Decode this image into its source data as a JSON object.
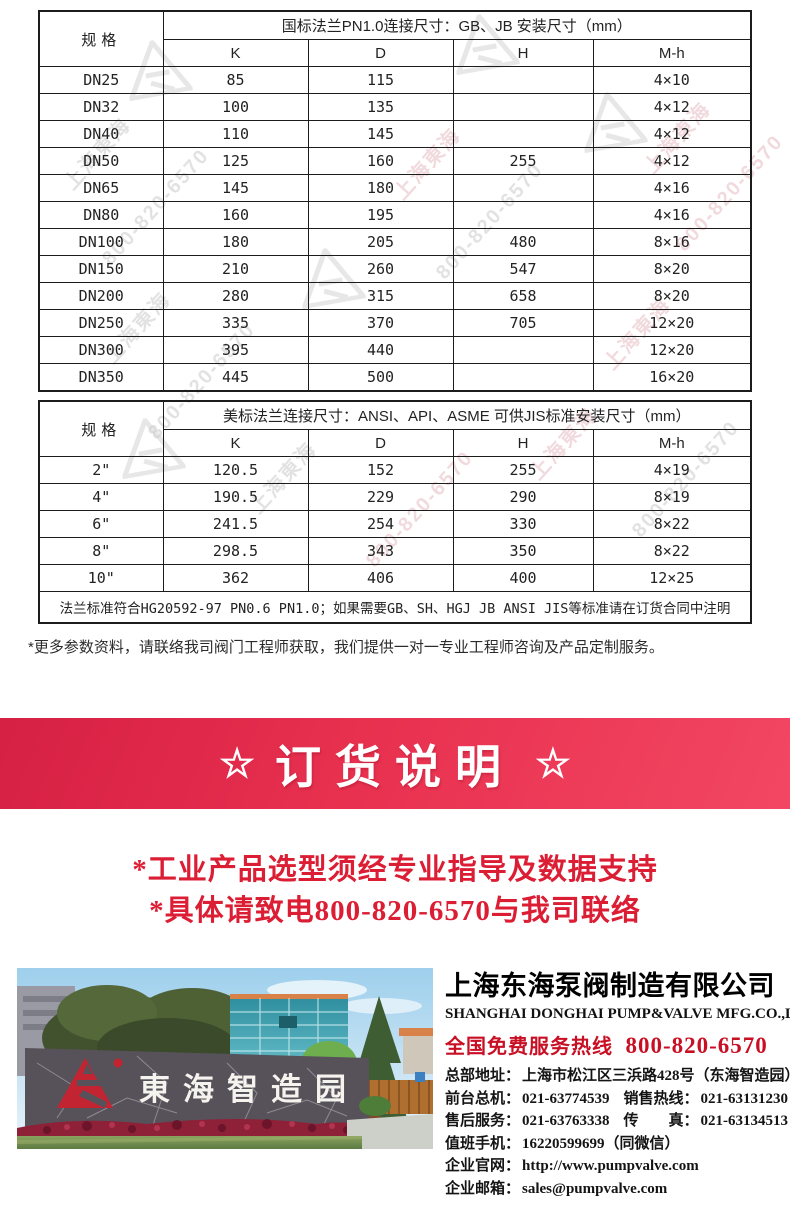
{
  "colors": {
    "accent_red": "#dc1e35",
    "banner_red_dark": "#d62044",
    "banner_red_light": "#f24763",
    "hotline_red": "#c90f24",
    "table_border": "#1c1c1c"
  },
  "watermark": {
    "company_text": "上海東海",
    "phone_text": "800-820-6570",
    "logo_icon": "donghai-triangle-logo"
  },
  "tables": [
    {
      "spec_header": "规格",
      "title": "国标法兰PN1.0连接尺寸：GB、JB 安装尺寸（mm）",
      "columns": [
        "K",
        "D",
        "H",
        "M-h"
      ],
      "rows": [
        [
          "DN25",
          "85",
          "115",
          "",
          "4×10"
        ],
        [
          "DN32",
          "100",
          "135",
          "",
          "4×12"
        ],
        [
          "DN40",
          "110",
          "145",
          "",
          "4×12"
        ],
        [
          "DN50",
          "125",
          "160",
          "255",
          "4×12"
        ],
        [
          "DN65",
          "145",
          "180",
          "",
          "4×16"
        ],
        [
          "DN80",
          "160",
          "195",
          "",
          "4×16"
        ],
        [
          "DN100",
          "180",
          "205",
          "480",
          "8×16"
        ],
        [
          "DN150",
          "210",
          "260",
          "547",
          "8×20"
        ],
        [
          "DN200",
          "280",
          "315",
          "658",
          "8×20"
        ],
        [
          "DN250",
          "335",
          "370",
          "705",
          "12×20"
        ],
        [
          "DN300",
          "395",
          "440",
          "",
          "12×20"
        ],
        [
          "DN350",
          "445",
          "500",
          "",
          "16×20"
        ]
      ],
      "footer": ""
    },
    {
      "spec_header": "规格",
      "title": "美标法兰连接尺寸：ANSI、API、ASME 可供JIS标准安装尺寸（mm）",
      "columns": [
        "K",
        "D",
        "H",
        "M-h"
      ],
      "rows": [
        [
          "2\"",
          "120.5",
          "152",
          "255",
          "4×19"
        ],
        [
          "4\"",
          "190.5",
          "229",
          "290",
          "8×19"
        ],
        [
          "6\"",
          "241.5",
          "254",
          "330",
          "8×22"
        ],
        [
          "8\"",
          "298.5",
          "343",
          "350",
          "8×22"
        ],
        [
          "10\"",
          "362",
          "406",
          "400",
          "12×25"
        ]
      ],
      "footer": "法兰标准符合HG20592-97 PN0.6 PN1.0；如果需要GB、SH、HGJ JB ANSI JIS等标准请在订货合同中注明"
    }
  ],
  "param_note": "*更多参数资料，请联络我司阀门工程师获取，我们提供一对一专业工程师咨询及产品定制服务。",
  "banner": {
    "star_left": "☆",
    "title": "订货说明",
    "star_right": "☆"
  },
  "notice_lines": [
    "*工业产品选型须经专业指导及数据支持",
    "*具体请致电800-820-6570与我司联络"
  ],
  "company": {
    "photo_sign": "東海智造园",
    "name_cn": "上海东海泵阀制造有限公司",
    "name_en": "SHANGHAI DONGHAI PUMP&VALVE MFG.CO.,LTD.",
    "hotline_label": "全国免费服务热线",
    "hotline_number": "800-820-6570",
    "contacts": [
      {
        "label": "总部地址：",
        "value": "上海市松江区三浜路428号（东海智造园）"
      },
      {
        "label": "前台总机：",
        "value": "021-63774539",
        "label2": "销售热线：",
        "value2": "021-63131230"
      },
      {
        "label": "售后服务：",
        "value": "021-63763338",
        "label2": "传　　真：",
        "value2": "021-63134513"
      },
      {
        "label": "值班手机：",
        "value": "16220599699（同微信）"
      },
      {
        "label": "企业官网：",
        "value": "http://www.pumpvalve.com"
      },
      {
        "label": "企业邮箱：",
        "value": "sales@pumpvalve.com"
      }
    ]
  }
}
